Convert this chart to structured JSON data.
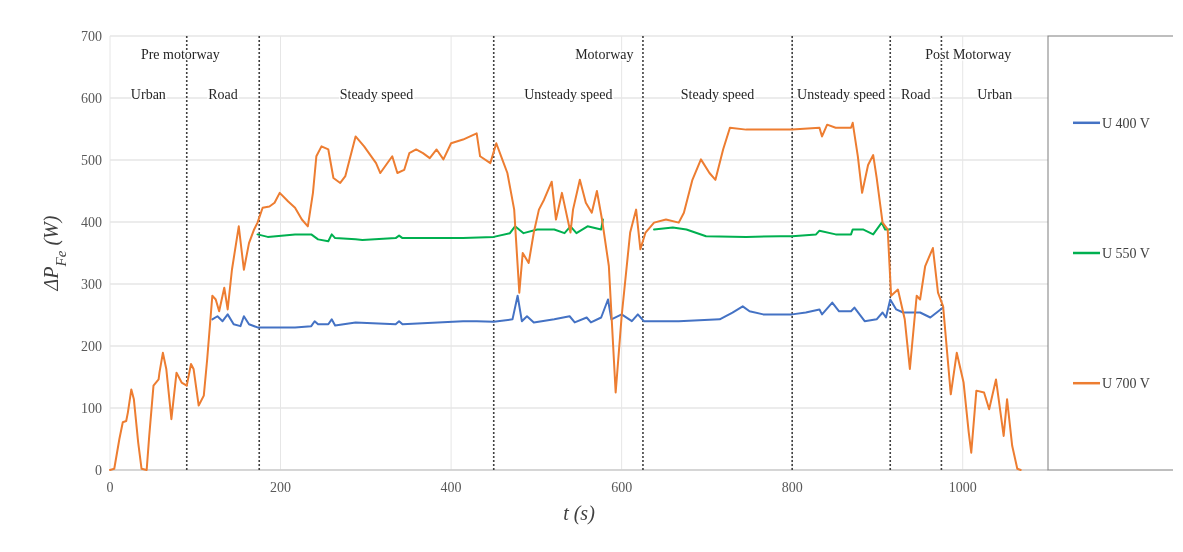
{
  "chart_data": {
    "type": "line",
    "xlabel": "t (s)",
    "ylabel": "ΔP$_{Fe}$ (W)",
    "xlim": [
      0,
      1100
    ],
    "xticks": [
      0,
      200,
      400,
      600,
      800,
      1000
    ],
    "ylim": [
      0,
      700
    ],
    "yticks": [
      0,
      100,
      200,
      300,
      400,
      500,
      600,
      700
    ],
    "grid": true,
    "legend": "right",
    "line_style": "solid",
    "marker": "none",
    "series": [
      {
        "name": "U 400 V",
        "color": "#4472c4",
        "x": [
          120,
          126,
          132,
          138,
          145,
          153,
          157,
          163,
          173,
          217,
          236,
          240,
          244,
          256,
          260,
          264,
          288,
          335,
          339,
          343,
          414,
          430,
          450,
          472,
          478,
          483,
          489,
          497,
          521,
          539,
          545,
          559,
          564,
          576,
          584,
          588,
          600,
          612,
          619,
          626,
          667,
          715,
          730,
          742,
          750,
          766,
          786,
          800,
          816,
          832,
          835,
          847,
          855,
          869,
          873,
          885,
          899,
          906,
          910,
          915,
          922,
          930,
          950,
          962,
          974,
          977
        ],
        "values": [
          243,
          248,
          240,
          251,
          235,
          232,
          248,
          235,
          230,
          230,
          232,
          240,
          235,
          235,
          243,
          233,
          238,
          235,
          240,
          235,
          240,
          240,
          239,
          243,
          281,
          240,
          248,
          238,
          243,
          248,
          238,
          246,
          238,
          246,
          275,
          243,
          251,
          240,
          251,
          240,
          240,
          243,
          254,
          264,
          256,
          251,
          251,
          251,
          254,
          259,
          251,
          270,
          256,
          256,
          262,
          240,
          243,
          254,
          246,
          275,
          259,
          254,
          254,
          246,
          259,
          262
        ]
      },
      {
        "name": "U 550 V",
        "color": "#00b050",
        "x": [
          173,
          185,
          217,
          236,
          244,
          256,
          260,
          264,
          288,
          296,
          335,
          339,
          343,
          414,
          450,
          469,
          475,
          485,
          501,
          521,
          533,
          540,
          547,
          560,
          576,
          578,
          600,
          638,
          660,
          676,
          699,
          746,
          786,
          800,
          828,
          832,
          851,
          869,
          871,
          883,
          895,
          905,
          909,
          914
        ],
        "values": [
          380,
          376,
          380,
          380,
          372,
          369,
          380,
          374,
          372,
          371,
          374,
          378,
          374,
          374,
          376,
          382,
          393,
          382,
          388,
          388,
          382,
          393,
          382,
          393,
          388,
          404,
          null,
          388,
          391,
          388,
          377,
          376,
          377,
          377,
          380,
          386,
          380,
          380,
          388,
          388,
          380,
          399,
          388,
          388
        ]
      },
      {
        "name": "U 700 V",
        "color": "#ed7d31",
        "x": [
          0,
          5,
          11,
          15,
          19,
          21,
          25,
          28,
          33,
          37,
          43,
          46,
          51,
          57,
          58,
          62,
          66,
          72,
          78,
          84,
          90,
          95,
          98,
          104,
          110,
          114,
          120,
          124,
          128,
          134,
          138,
          143,
          151,
          157,
          163,
          169,
          173,
          179,
          187,
          193,
          199,
          209,
          217,
          225,
          232,
          238,
          242,
          248,
          256,
          262,
          270,
          276,
          288,
          298,
          312,
          317,
          331,
          337,
          345,
          351,
          359,
          367,
          375,
          383,
          391,
          400,
          414,
          430,
          434,
          446,
          453,
          460,
          466,
          474,
          480,
          484,
          491,
          497,
          503,
          509,
          518,
          523,
          530,
          540,
          543,
          551,
          558,
          565,
          571,
          577,
          585,
          593,
          600,
          610,
          617,
          622,
          628,
          638,
          652,
          667,
          673,
          683,
          693,
          703,
          710,
          719,
          727,
          746,
          786,
          800,
          832,
          835,
          841,
          851,
          869,
          871,
          877,
          882,
          889,
          895,
          899,
          906,
          912,
          916,
          924,
          932,
          938,
          946,
          950,
          956,
          965,
          971,
          977,
          986,
          993,
          1001,
          1007,
          1010,
          1016,
          1025,
          1031,
          1039,
          1048,
          1052,
          1058,
          1064,
          1068
        ],
        "values": [
          0,
          2,
          50,
          77,
          79,
          93,
          130,
          114,
          45,
          2,
          0,
          55,
          136,
          146,
          157,
          189,
          163,
          82,
          157,
          141,
          136,
          171,
          163,
          104,
          120,
          179,
          281,
          275,
          256,
          294,
          259,
          323,
          393,
          323,
          366,
          388,
          399,
          423,
          425,
          431,
          447,
          433,
          423,
          404,
          393,
          447,
          506,
          522,
          517,
          471,
          463,
          474,
          538,
          522,
          495,
          479,
          506,
          479,
          484,
          511,
          517,
          511,
          503,
          517,
          501,
          527,
          533,
          543,
          506,
          495,
          527,
          501,
          479,
          420,
          286,
          350,
          334,
          383,
          420,
          436,
          465,
          404,
          447,
          383,
          420,
          468,
          431,
          415,
          450,
          404,
          329,
          125,
          248,
          383,
          420,
          356,
          383,
          399,
          404,
          399,
          415,
          468,
          501,
          479,
          468,
          517,
          552,
          549,
          549,
          549,
          552,
          538,
          557,
          552,
          552,
          560,
          506,
          447,
          492,
          508,
          472,
          399,
          388,
          281,
          291,
          243,
          163,
          281,
          275,
          329,
          358,
          286,
          264,
          122,
          189,
          141,
          61,
          28,
          128,
          125,
          98,
          146,
          55,
          114,
          39,
          2,
          0
        ]
      }
    ],
    "ref_lines": [
      {
        "axis": "x",
        "value": 90,
        "line_style": "dotted"
      },
      {
        "axis": "x",
        "value": 175,
        "line_style": "dotted"
      },
      {
        "axis": "x",
        "value": 450,
        "line_style": "dotted"
      },
      {
        "axis": "x",
        "value": 625,
        "line_style": "dotted"
      },
      {
        "axis": "x",
        "value": 800,
        "line_style": "dotted"
      },
      {
        "axis": "x",
        "value": 915,
        "line_style": "dotted"
      },
      {
        "axis": "x",
        "value": 975,
        "line_style": "dotted"
      }
    ],
    "annotations": [
      "Pre motorway",
      "Motorway",
      "Post Motorway",
      "Urban",
      "Road",
      "Steady speed",
      "Unsteady speed",
      "Steady speed",
      "Unsteady speed",
      "Road",
      "Urban"
    ]
  }
}
